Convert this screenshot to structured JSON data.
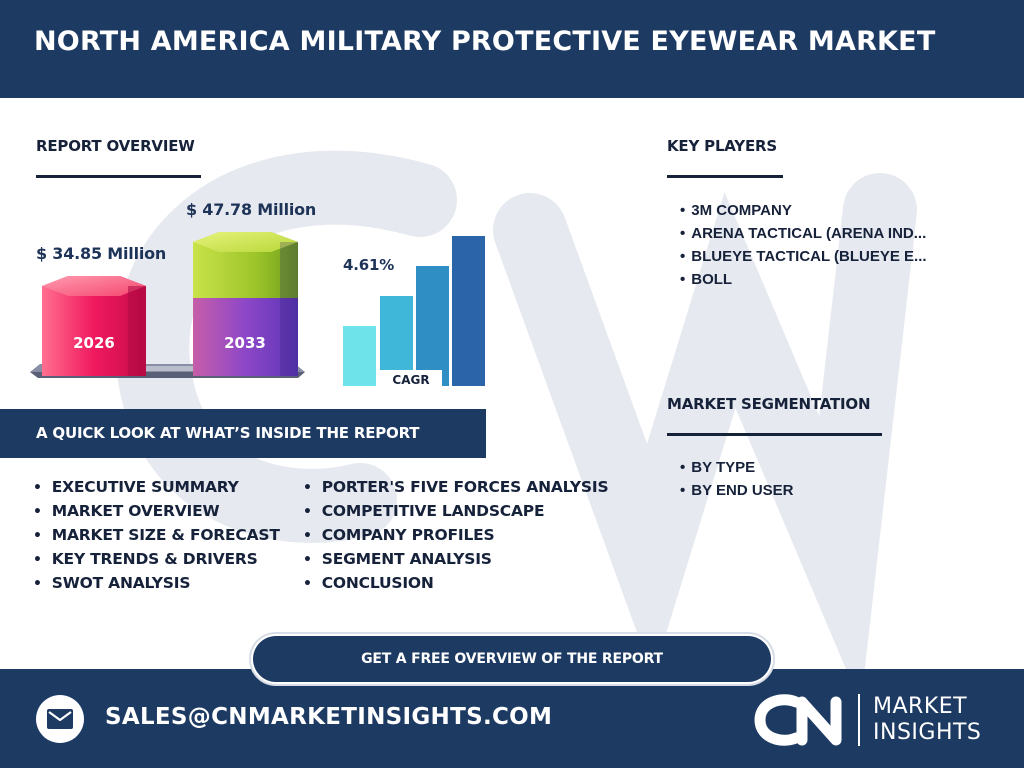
{
  "header": {
    "title": "NORTH AMERICA MILITARY PROTECTIVE EYEWEAR MARKET"
  },
  "overview": {
    "heading": "REPORT OVERVIEW",
    "value_2026": "$ 34.85 Million",
    "value_2033": "$ 47.78 Million",
    "year_2026": "2026",
    "year_2033": "2033",
    "cagr_value": "4.61%",
    "cagr_label": "CAGR"
  },
  "chart_data": {
    "type": "bar",
    "categories": [
      "2026",
      "2033"
    ],
    "values": [
      34.85,
      47.78
    ],
    "ylabel": "",
    "title": ""
  },
  "key_players": {
    "heading": "KEY PLAYERS",
    "items": [
      "3M COMPANY",
      "ARENA TACTICAL (ARENA IND...",
      "BLUEYE TACTICAL (BLUEYE E...",
      "BOLL"
    ]
  },
  "segmentation": {
    "heading": "MARKET SEGMENTATION",
    "items": [
      "BY TYPE",
      "BY END USER"
    ]
  },
  "quick_look": {
    "heading": "A QUICK LOOK AT WHAT’S INSIDE THE REPORT",
    "left": [
      "EXECUTIVE SUMMARY",
      "MARKET OVERVIEW",
      "MARKET SIZE & FORECAST",
      "KEY TRENDS & DRIVERS",
      "SWOT ANALYSIS"
    ],
    "right": [
      "PORTER'S FIVE FORCES ANALYSIS",
      "COMPETITIVE LANDSCAPE",
      "COMPANY PROFILES",
      "SEGMENT ANALYSIS",
      "CONCLUSION"
    ]
  },
  "cta": {
    "label": "GET A FREE OVERVIEW OF THE REPORT"
  },
  "footer": {
    "email": "SALES@CNMARKETINSIGHTS.COM",
    "logo_mark": "CN",
    "logo_line1": "MARKET",
    "logo_line2": "INSIGHTS"
  },
  "colors": {
    "navy": "#1d3a63",
    "pink_bar": "#f0195f",
    "purple_bar": "#7d46c9",
    "lime_top": "#a6cd2f",
    "cagr_bars": [
      "#6ee3ea",
      "#3fb7d9",
      "#2f8ec4",
      "#2b64a8"
    ]
  },
  "icons": {
    "mail": "envelope-icon"
  }
}
